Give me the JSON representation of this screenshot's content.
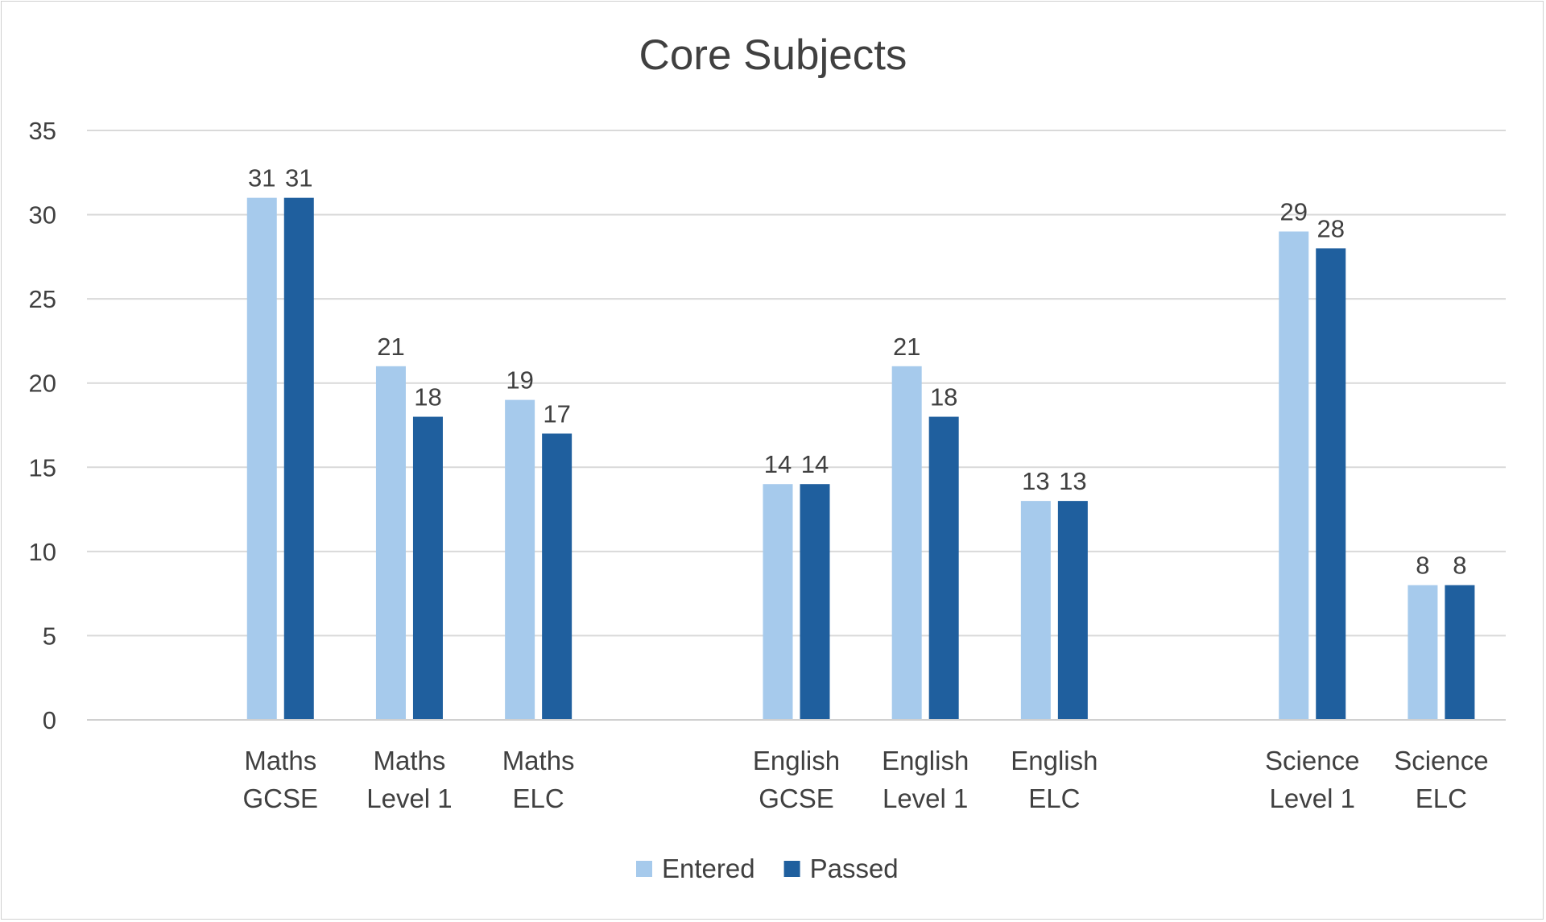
{
  "chart_data": {
    "type": "bar",
    "title": "Core Subjects",
    "categories": [
      "",
      "Maths GCSE",
      "Maths Level 1",
      "Maths ELC",
      "",
      "English GCSE",
      "English Level 1",
      "English ELC",
      "",
      "Science Level 1",
      "Science ELC"
    ],
    "series": [
      {
        "name": "Entered",
        "color": "#A6CAEC",
        "values": [
          null,
          31,
          21,
          19,
          null,
          14,
          21,
          13,
          null,
          29,
          8
        ]
      },
      {
        "name": "Passed",
        "color": "#1F5F9E",
        "values": [
          null,
          31,
          18,
          17,
          null,
          14,
          18,
          13,
          null,
          28,
          8
        ]
      }
    ],
    "ylim": [
      0,
      35
    ],
    "yticks": [
      0,
      5,
      10,
      15,
      20,
      25,
      30,
      35
    ],
    "grid": true,
    "data_labels": true,
    "legend": "bottom",
    "xlabel": "",
    "ylabel": ""
  }
}
